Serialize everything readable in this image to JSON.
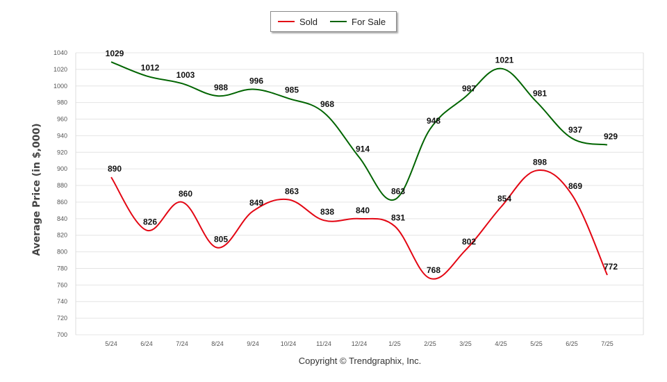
{
  "chart_data": {
    "type": "line",
    "categories": [
      "5/24",
      "6/24",
      "7/24",
      "8/24",
      "9/24",
      "10/24",
      "11/24",
      "12/24",
      "1/25",
      "2/25",
      "3/25",
      "4/25",
      "5/25",
      "6/25",
      "7/25"
    ],
    "series": [
      {
        "name": "Sold",
        "color": "#e30613",
        "values": [
          890,
          826,
          860,
          805,
          849,
          863,
          838,
          840,
          831,
          768,
          802,
          854,
          898,
          869,
          772
        ]
      },
      {
        "name": "For Sale",
        "color": "#006400",
        "values": [
          1029,
          1012,
          1003,
          988,
          996,
          985,
          968,
          914,
          863,
          948,
          987,
          1021,
          981,
          937,
          929
        ]
      }
    ],
    "ylabel": "Average Price (in $,000)",
    "xlabel": "",
    "ylim": [
      700,
      1040
    ],
    "yticks": [
      700,
      720,
      740,
      760,
      780,
      800,
      820,
      840,
      860,
      880,
      900,
      920,
      940,
      960,
      980,
      1000,
      1020,
      1040
    ],
    "grid": true,
    "legend_position": "top-center"
  },
  "legend": {
    "sold": "Sold",
    "for_sale": "For Sale"
  },
  "footer": {
    "copyright": "Copyright © Trendgraphix, Inc."
  }
}
